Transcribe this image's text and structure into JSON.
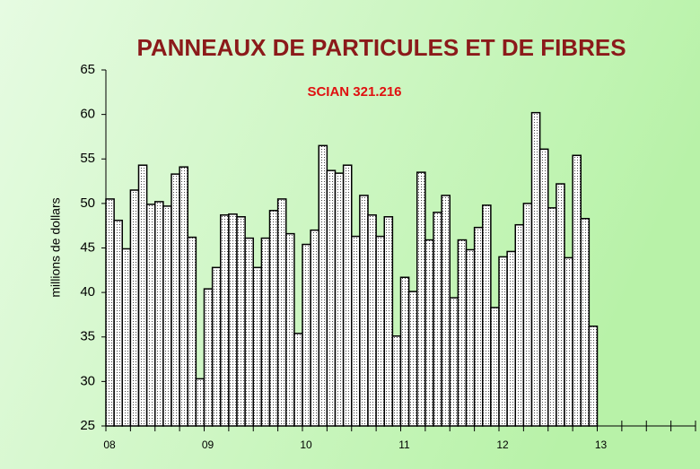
{
  "chart_data": {
    "type": "bar",
    "title": "PANNEAUX DE PARTICULES ET DE FIBRES",
    "subtitle": "SCIAN 321.216",
    "y_label": "millions de dollars",
    "color": "#ffffff",
    "categories": [
      "08",
      null,
      null,
      null,
      null,
      null,
      null,
      null,
      null,
      null,
      null,
      null,
      "09",
      null,
      null,
      null,
      null,
      null,
      null,
      null,
      null,
      null,
      null,
      null,
      "10",
      null,
      null,
      null,
      null,
      null,
      null,
      null,
      null,
      null,
      null,
      null,
      "11",
      null,
      null,
      null,
      null,
      null,
      null,
      null,
      null,
      null,
      null,
      null,
      "12",
      null,
      null,
      null,
      null,
      null,
      null,
      null,
      null,
      null,
      null,
      null,
      "13",
      null,
      null,
      null,
      null,
      null,
      null,
      null,
      null,
      null,
      null,
      null
    ],
    "values": [
      50.5,
      48.1,
      44.9,
      51.5,
      54.3,
      49.9,
      50.2,
      49.7,
      53.3,
      54.1,
      46.2,
      30.3,
      40.4,
      42.8,
      48.7,
      48.8,
      48.5,
      46.1,
      42.8,
      46.1,
      49.2,
      50.5,
      46.6,
      35.4,
      45.4,
      47.0,
      56.5,
      53.7,
      53.4,
      54.3,
      46.3,
      50.9,
      48.7,
      46.3,
      48.5,
      35.1,
      41.7,
      40.1,
      53.5,
      45.9,
      49.0,
      50.9,
      39.4,
      45.9,
      44.8,
      47.3,
      49.8,
      38.3,
      44.0,
      44.6,
      47.6,
      50.0,
      60.2,
      56.1,
      49.5,
      52.2,
      43.9,
      55.4,
      48.3,
      36.2,
      null,
      null,
      null,
      null,
      null,
      null,
      null,
      null,
      null,
      null,
      null,
      null
    ],
    "ylim": [
      25,
      65
    ],
    "yticks": [
      25,
      30,
      35,
      40,
      45,
      50,
      55,
      60,
      65
    ],
    "grid": false
  }
}
